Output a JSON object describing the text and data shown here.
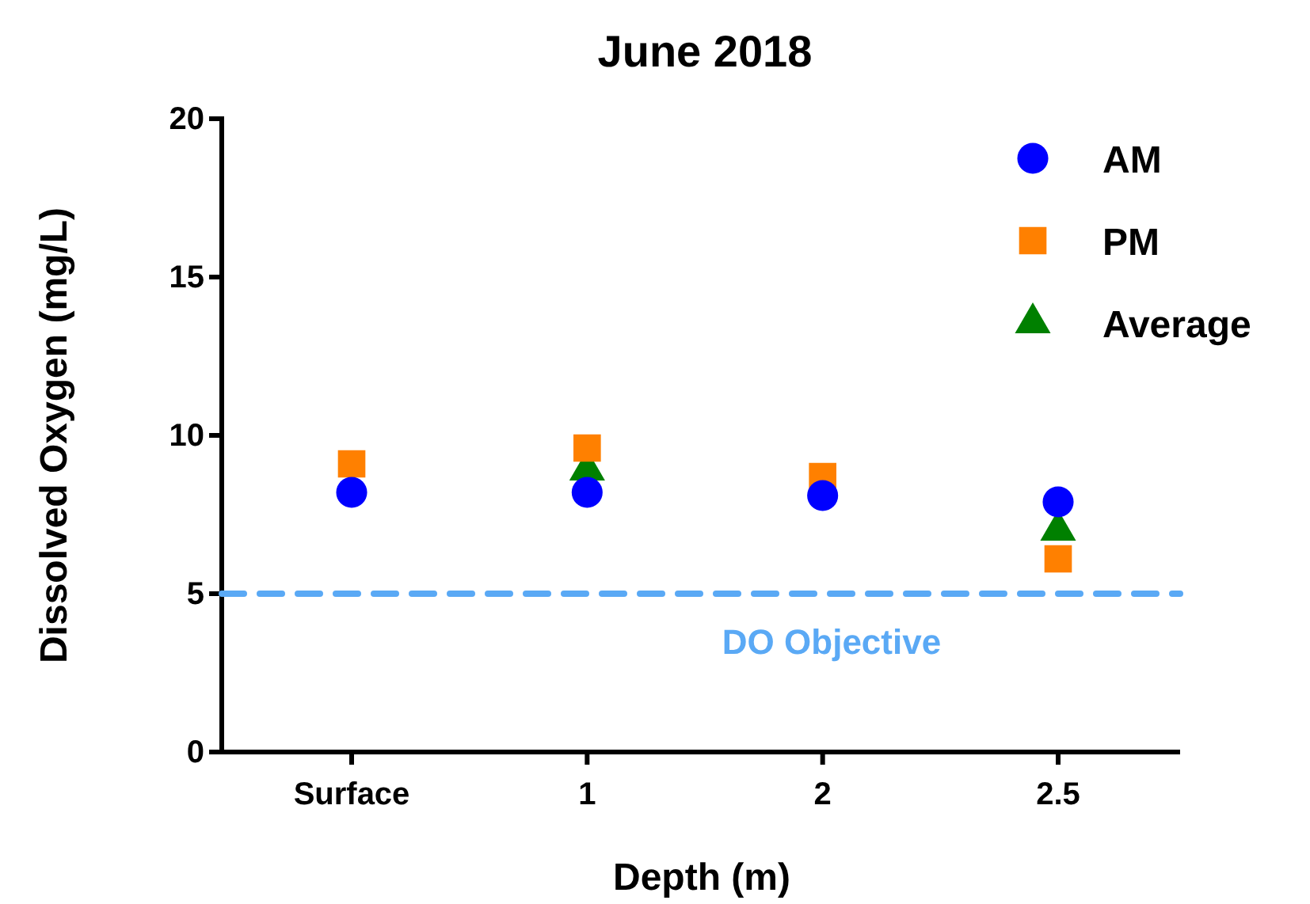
{
  "chart_data": {
    "type": "scatter",
    "title": "June 2018",
    "xlabel": "Depth (m)",
    "ylabel": "Dissolved Oxygen (mg/L)",
    "categories": [
      "Surface",
      "1",
      "2",
      "2.5"
    ],
    "series": [
      {
        "name": "AM",
        "color": "#0000ff",
        "marker": "circle",
        "values": [
          8.2,
          8.2,
          8.1,
          7.9
        ]
      },
      {
        "name": "PM",
        "color": "#ff8000",
        "marker": "square",
        "values": [
          9.1,
          9.6,
          8.7,
          6.1
        ]
      },
      {
        "name": "Average",
        "color": "#008000",
        "marker": "triangle",
        "values": [
          null,
          8.9,
          null,
          7.0
        ]
      }
    ],
    "ylim": [
      0,
      20
    ],
    "yticks": [
      0,
      5,
      10,
      15,
      20
    ],
    "grid": false,
    "legend": "top right",
    "ref_lines": [
      {
        "axis": "y",
        "value": 5,
        "label": "DO Objective",
        "color": "#5aa9f5",
        "line_style": "dashed"
      }
    ]
  }
}
